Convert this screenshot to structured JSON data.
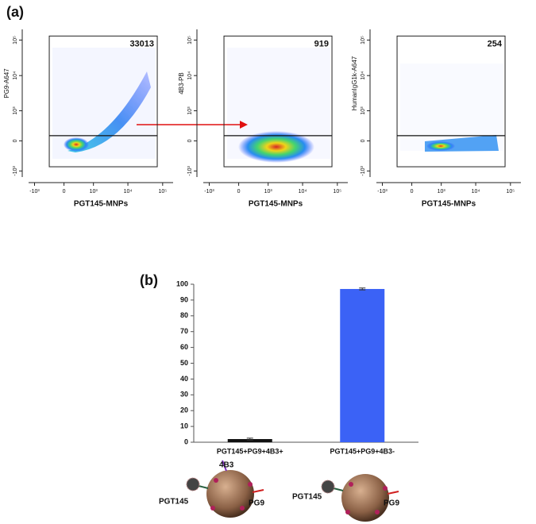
{
  "panel_labels": [
    "(a)",
    "(b)"
  ],
  "chart_data": [
    {
      "type": "density",
      "x_label": "PGT145-MNPs",
      "y_label": "PG9-A647",
      "count": 33013,
      "xlim": [
        -1500,
        200000
      ],
      "ylim": [
        -1500,
        200000
      ],
      "xticks": [
        {
          "value": -1000,
          "label": "-10³"
        },
        0,
        {
          "value": 1000,
          "label": "10³"
        },
        {
          "value": 10000,
          "label": "10⁴"
        },
        {
          "value": 100000,
          "label": "10⁵"
        }
      ],
      "yticks": [
        {
          "value": -1000,
          "label": "-10³"
        },
        0,
        {
          "value": 1000,
          "label": "10³"
        },
        {
          "value": 10000,
          "label": "10⁴"
        },
        {
          "value": 100000,
          "label": "10⁵"
        }
      ],
      "gate": {
        "x": [
          -330,
          70000
        ],
        "y": [
          -750,
          130000
        ]
      },
      "threshold": 100
    },
    {
      "type": "density",
      "x_label": "PGT145-MNPs",
      "y_label": "4B3-PB",
      "count": 919,
      "xlim": [
        -1500,
        200000
      ],
      "ylim": [
        -1500,
        200000
      ],
      "xticks": [
        {
          "value": -1000,
          "label": "-10³"
        },
        0,
        {
          "value": 1000,
          "label": "10³"
        },
        {
          "value": 10000,
          "label": "10⁴"
        },
        {
          "value": 100000,
          "label": "10⁵"
        }
      ],
      "yticks": [
        {
          "value": -1000,
          "label": "-10³"
        },
        0,
        {
          "value": 1000,
          "label": "10³"
        },
        {
          "value": 10000,
          "label": "10⁴"
        },
        {
          "value": 100000,
          "label": "10⁵"
        }
      ],
      "gate": {
        "x": [
          -330,
          70000
        ],
        "y": [
          -750,
          130000
        ]
      },
      "threshold": 100
    },
    {
      "type": "density",
      "x_label": "PGT145-MNPs",
      "y_label": "HumanIgG1k-A647",
      "count": 254,
      "xlim": [
        -1500,
        200000
      ],
      "ylim": [
        -1500,
        200000
      ],
      "xticks": [
        {
          "value": -1000,
          "label": "-10³"
        },
        0,
        {
          "value": 1000,
          "label": "10³"
        },
        {
          "value": 10000,
          "label": "10⁴"
        },
        {
          "value": 100000,
          "label": "10⁵"
        }
      ],
      "yticks": [
        {
          "value": -1000,
          "label": "-10³"
        },
        0,
        {
          "value": 1000,
          "label": "10³"
        },
        {
          "value": 10000,
          "label": "10⁴"
        },
        {
          "value": 100000,
          "label": "10⁵"
        }
      ],
      "gate": {
        "x": [
          -330,
          70000
        ],
        "y": [
          -750,
          130000
        ]
      },
      "threshold": 100
    },
    {
      "type": "bar",
      "categories": [
        "PGT145+PG9+4B3+",
        "PGT145+PG9+4B3-"
      ],
      "values": [
        2,
        97
      ],
      "errors": [
        0.6,
        0.6
      ],
      "colors": [
        "#111111",
        "#3b62f6"
      ],
      "ylim": [
        0,
        100
      ],
      "yticks": [
        0,
        10,
        20,
        30,
        40,
        50,
        60,
        70,
        80,
        90,
        100
      ]
    }
  ],
  "diagram": {
    "left_labels": [
      "4B3",
      "PGT145",
      "PG9"
    ],
    "right_labels": [
      "PGT145",
      "PG9"
    ]
  }
}
